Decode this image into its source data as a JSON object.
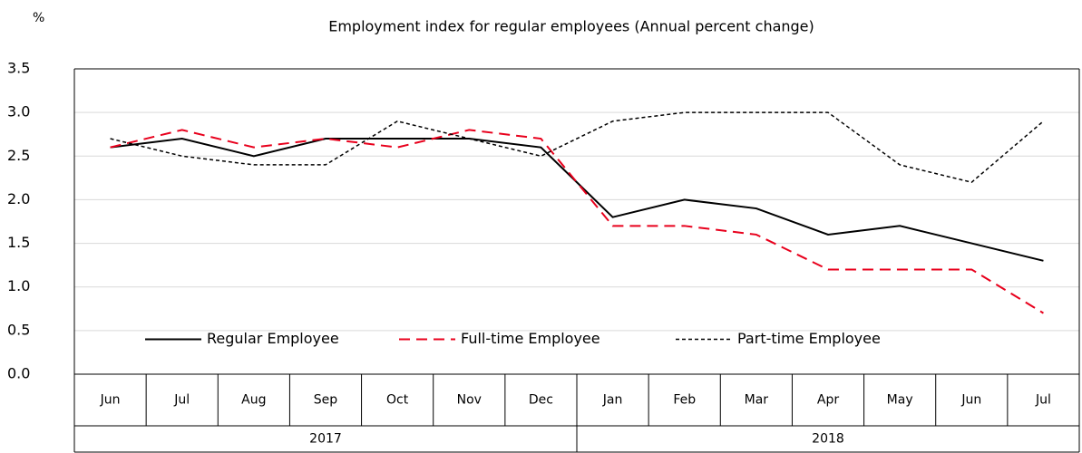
{
  "chart_data": {
    "type": "line",
    "title": "Employment index for regular employees (Annual percent change)",
    "y_unit": "%",
    "categories": [
      "Jun",
      "Jul",
      "Aug",
      "Sep",
      "Oct",
      "Nov",
      "Dec",
      "Jan",
      "Feb",
      "Mar",
      "Apr",
      "May",
      "Jun",
      "Jul"
    ],
    "x_groups": [
      {
        "label": "2017",
        "span": 7
      },
      {
        "label": "2018",
        "span": 7
      }
    ],
    "series": [
      {
        "name": "Regular Employee",
        "color": "#000000",
        "dash": "solid",
        "values": [
          2.6,
          2.7,
          2.5,
          2.7,
          2.7,
          2.7,
          2.6,
          1.8,
          2.0,
          1.9,
          1.6,
          1.7,
          1.5,
          1.3
        ]
      },
      {
        "name": "Full-time Employee",
        "color": "#e8001c",
        "dash": "dashed",
        "values": [
          2.6,
          2.8,
          2.6,
          2.7,
          2.6,
          2.8,
          2.7,
          1.7,
          1.7,
          1.6,
          1.2,
          1.2,
          1.2,
          0.7
        ]
      },
      {
        "name": "Part-time Employee",
        "color": "#000000",
        "dash": "dotted",
        "values": [
          2.7,
          2.5,
          2.4,
          2.4,
          2.9,
          2.7,
          2.5,
          2.9,
          3.0,
          3.0,
          3.0,
          2.4,
          2.2,
          2.9
        ]
      }
    ],
    "ylim": [
      0,
      3.5
    ],
    "yticks": [
      {
        "value": 0,
        "label": "0.0"
      },
      0.5,
      {
        "value": 1,
        "label": "1.0"
      },
      1.5,
      {
        "value": 2,
        "label": "2.0"
      },
      2.5,
      {
        "value": 3,
        "label": "3.0"
      },
      3.5
    ],
    "grid": true,
    "legend": "bottom"
  }
}
